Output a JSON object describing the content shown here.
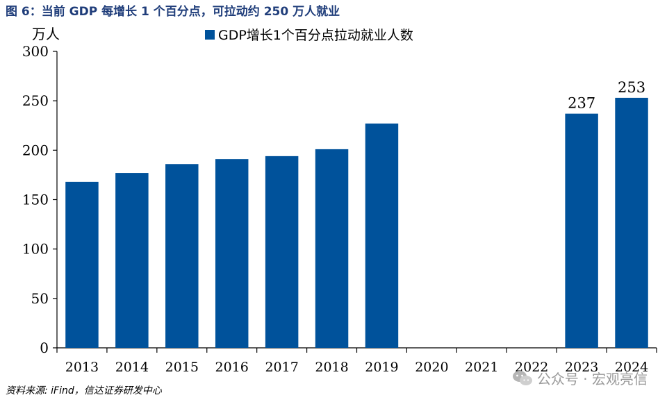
{
  "figure": {
    "title": "图 6：当前 GDP 每增长 1 个百分点，可拉动约 250 万人就业",
    "source": "资料来源: iFind，信达证券研发中心",
    "watermark": "公众号 · 宏观亮信"
  },
  "chart_data": {
    "type": "bar",
    "ylabel": "万人",
    "ylim": [
      0,
      300
    ],
    "yticks": [
      0,
      50,
      100,
      150,
      200,
      250,
      300
    ],
    "categories": [
      "2013",
      "2014",
      "2015",
      "2016",
      "2017",
      "2018",
      "2019",
      "2020",
      "2021",
      "2022",
      "2023",
      "2024"
    ],
    "series": [
      {
        "name": "GDP增长1个百分点拉动就业人数",
        "values": [
          168,
          177,
          186,
          191,
          194,
          201,
          227,
          null,
          null,
          null,
          237,
          253
        ],
        "labels": [
          null,
          null,
          null,
          null,
          null,
          null,
          null,
          null,
          null,
          null,
          "237",
          "253"
        ]
      }
    ],
    "legend": "top",
    "grid": false,
    "colors": {
      "bar": "#00529b"
    }
  }
}
